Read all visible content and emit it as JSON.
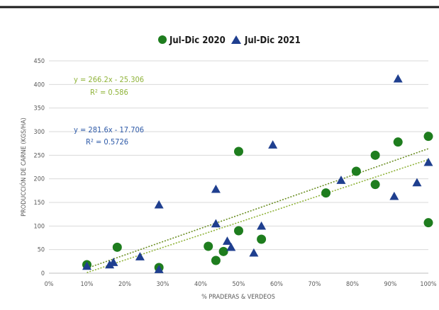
{
  "chart_data": {
    "type": "scatter",
    "xlabel": "% PRADERAS & VERDEOS",
    "ylabel": "PRODUCCIÓN DE CARNE (KGS/HA)",
    "xlim": [
      0,
      1
    ],
    "ylim": [
      0,
      450
    ],
    "x_ticks": [
      "0%",
      "10%",
      "20%",
      "30%",
      "40%",
      "50%",
      "60%",
      "70%",
      "80%",
      "90%",
      "100%"
    ],
    "y_ticks": [
      "0",
      "50",
      "100",
      "150",
      "200",
      "250",
      "300",
      "350",
      "400",
      "450"
    ],
    "grid": "horizontal",
    "legend_position": "top",
    "series": [
      {
        "name": "Jul-Dic 2020",
        "marker": "circle",
        "color": "#1e7d1e",
        "points": [
          [
            0.1,
            18
          ],
          [
            0.18,
            55
          ],
          [
            0.29,
            12
          ],
          [
            0.42,
            57
          ],
          [
            0.44,
            27
          ],
          [
            0.46,
            46
          ],
          [
            0.5,
            90
          ],
          [
            0.5,
            258
          ],
          [
            0.56,
            72
          ],
          [
            0.73,
            170
          ],
          [
            0.81,
            216
          ],
          [
            0.86,
            250
          ],
          [
            0.86,
            188
          ],
          [
            0.92,
            278
          ],
          [
            1.0,
            290
          ],
          [
            1.0,
            107
          ]
        ],
        "trendline": {
          "equation": "y = 266.2x - 25.306",
          "r2": "R² = 0.586",
          "slope": 266.2,
          "intercept": -25.306,
          "color": "#8fb339"
        }
      },
      {
        "name": "Jul-Dic 2021",
        "marker": "triangle",
        "color": "#1f3f8f",
        "points": [
          [
            0.1,
            15
          ],
          [
            0.16,
            18
          ],
          [
            0.17,
            23
          ],
          [
            0.24,
            35
          ],
          [
            0.29,
            145
          ],
          [
            0.29,
            8
          ],
          [
            0.44,
            178
          ],
          [
            0.44,
            105
          ],
          [
            0.47,
            68
          ],
          [
            0.48,
            55
          ],
          [
            0.54,
            43
          ],
          [
            0.56,
            100
          ],
          [
            0.59,
            272
          ],
          [
            0.77,
            197
          ],
          [
            0.91,
            163
          ],
          [
            0.92,
            412
          ],
          [
            0.97,
            192
          ],
          [
            1.0,
            235
          ]
        ],
        "trendline": {
          "equation": "y = 281.6x - 17.706",
          "r2": "R² = 0.5726",
          "slope": 281.6,
          "intercept": -17.706,
          "color": "#6b8e23"
        }
      }
    ]
  }
}
